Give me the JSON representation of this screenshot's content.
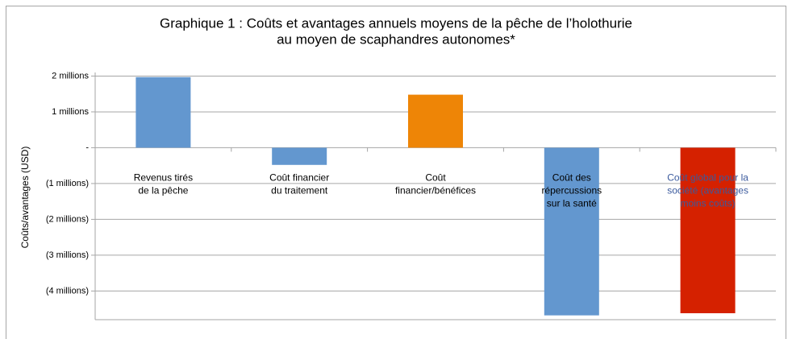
{
  "chart_data": {
    "type": "bar",
    "title": [
      "Graphique 1 : Coûts et avantages annuels moyens de la pêche de l’holothurie",
      "au moyen de scaphandres autonomes*"
    ],
    "y_label": "Coûts/avantages (USD)",
    "categories": [
      [
        "Revenus tirés",
        "de la pêche"
      ],
      [
        "Coût financier",
        "du traitement"
      ],
      [
        "Coût",
        "financier/bénéfices"
      ],
      [
        "Coût des",
        "répercussions",
        "sur la santé"
      ],
      [
        "Coût global pour la",
        "société (avantages",
        "moins coûts)"
      ]
    ],
    "values": [
      1970000,
      -480000,
      1480000,
      -4680000,
      -4620000
    ],
    "colors": [
      "#6397cf",
      "#6397cf",
      "#ee8506",
      "#6397cf",
      "#d52100"
    ],
    "label_colors": [
      "#000000",
      "#000000",
      "#000000",
      "#000000",
      "#3b5a9d"
    ],
    "ylim": [
      -4800000,
      2100000
    ],
    "yticks": [
      {
        "value": 2000000,
        "label": "2 millions"
      },
      {
        "value": 1000000,
        "label": "1 millions"
      },
      {
        "value": 0,
        "label": "-"
      },
      {
        "value": -1000000,
        "label": "(1 millions)"
      },
      {
        "value": -2000000,
        "label": "(2 millions)"
      },
      {
        "value": -3000000,
        "label": "(3 millions)"
      },
      {
        "value": -4000000,
        "label": "(4 millions)"
      }
    ],
    "grid": true
  }
}
